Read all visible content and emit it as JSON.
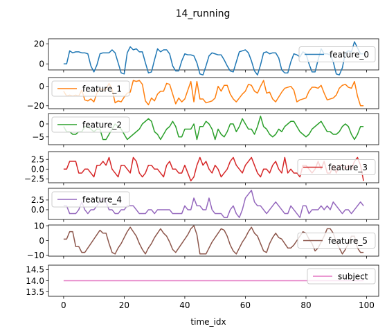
{
  "chart_data": {
    "type": "line",
    "title": "14_running",
    "xlabel": "time_idx",
    "x": [
      0,
      1,
      2,
      3,
      4,
      5,
      6,
      7,
      8,
      9,
      10,
      11,
      12,
      13,
      14,
      15,
      16,
      17,
      18,
      19,
      20,
      21,
      22,
      23,
      24,
      25,
      26,
      27,
      28,
      29,
      30,
      31,
      32,
      33,
      34,
      35,
      36,
      37,
      38,
      39,
      40,
      41,
      42,
      43,
      44,
      45,
      46,
      47,
      48,
      49,
      50,
      51,
      52,
      53,
      54,
      55,
      56,
      57,
      58,
      59,
      60,
      61,
      62,
      63,
      64,
      65,
      66,
      67,
      68,
      69,
      70,
      71,
      72,
      73,
      74,
      75,
      76,
      77,
      78,
      79,
      80,
      81,
      82,
      83,
      84,
      85,
      86,
      87,
      88,
      89,
      90,
      91,
      92,
      93,
      94,
      95,
      96,
      97,
      98,
      99
    ],
    "xlim": [
      -5,
      104
    ],
    "xticks": [
      0,
      20,
      40,
      60,
      80,
      100
    ],
    "panels": [
      {
        "name": "feature_0",
        "color": "#1f77b4",
        "ylim": [
          -6,
          25
        ],
        "yticks": [
          0,
          20
        ],
        "legend_loc": "center-right",
        "values": [
          0,
          0,
          13,
          11,
          12,
          12,
          11,
          11,
          10,
          -2,
          -8,
          -1,
          10,
          11,
          11,
          11,
          14,
          11,
          1,
          -9,
          -10,
          11,
          17,
          14,
          15,
          12,
          12,
          1,
          -9,
          -8,
          4,
          15,
          12,
          14,
          14,
          10,
          -2,
          -7,
          -7,
          3,
          10,
          9,
          9,
          8,
          1,
          -10,
          -11,
          -2,
          8,
          11,
          10,
          9,
          9,
          4,
          -2,
          -7,
          -8,
          2,
          12,
          13,
          14,
          11,
          3,
          -7,
          -11,
          -1,
          11,
          12,
          10,
          11,
          11,
          6,
          -6,
          -9,
          -9,
          2,
          10,
          9,
          7,
          12,
          10,
          0,
          -8,
          -8,
          4,
          15,
          10,
          10,
          9,
          2,
          -10,
          -11,
          -4,
          11,
          13,
          12,
          22,
          16,
          10,
          10
        ]
      },
      {
        "name": "feature_1",
        "color": "#ff7f0e",
        "ylim": [
          -23,
          9
        ],
        "yticks": [
          0,
          -20
        ],
        "legend_loc": "upper-left",
        "values": [
          -5,
          -10,
          -9,
          -10,
          -9,
          -10,
          -4,
          -14,
          -15,
          -13,
          -16,
          -7,
          -2,
          -4,
          -3,
          3,
          -3,
          -17,
          -15,
          -16,
          -11,
          -7,
          -6,
          6,
          5,
          6,
          2,
          -15,
          -19,
          -12,
          -15,
          -8,
          -5,
          -5,
          3,
          2,
          -8,
          -18,
          -12,
          -16,
          -13,
          -4,
          5,
          -16,
          5,
          -13,
          -13,
          -17,
          -16,
          -15,
          -12,
          0,
          -5,
          1,
          1,
          -8,
          -13,
          -16,
          -12,
          -8,
          -5,
          2,
          1,
          -5,
          -7,
          0,
          6,
          -7,
          -6,
          -13,
          -16,
          -11,
          -6,
          -2,
          -1,
          0,
          -4,
          -16,
          -14,
          -13,
          -12,
          -5,
          -1,
          -1,
          -2,
          1,
          -7,
          -14,
          -13,
          -12,
          -9,
          -2,
          1,
          2,
          -1,
          -2,
          5,
          -10,
          -20,
          -20
        ]
      },
      {
        "name": "feature_2",
        "color": "#2ca02c",
        "ylim": [
          -8,
          4
        ],
        "yticks": [
          0,
          -5
        ],
        "legend_loc": "upper-left",
        "values": [
          -1,
          -3,
          -3,
          -4,
          -4,
          -3,
          -3,
          -1,
          -1,
          -2,
          -3,
          -2,
          -2,
          -6,
          -6,
          -4,
          -2,
          0,
          -1,
          -2,
          -4,
          -6,
          -5,
          -4,
          -3,
          -2,
          0,
          1,
          2,
          1,
          -3,
          -4,
          -6,
          -4,
          -2,
          -1,
          1,
          -1,
          -5,
          -5,
          -2,
          -2,
          -2,
          0,
          -6,
          -1,
          -1,
          1,
          0,
          -2,
          -6,
          -2,
          -4,
          -5,
          -3,
          0,
          0,
          -3,
          -1,
          2,
          0,
          -2,
          -2,
          -4,
          -1,
          3,
          -1,
          -2,
          -4,
          -5,
          -4,
          -2,
          -3,
          -1,
          0,
          1,
          1,
          -1,
          -3,
          -4,
          -5,
          -4,
          -2,
          -1,
          0,
          1,
          -1,
          -3,
          -3,
          -4,
          -4,
          -3,
          -1,
          0,
          -1,
          -4,
          -6,
          -4,
          -1,
          -1
        ]
      },
      {
        "name": "feature_3",
        "color": "#d62728",
        "ylim": [
          -3.5,
          4.5
        ],
        "yticks": [
          2.5,
          0.0,
          -2.5
        ],
        "legend_loc": "center-right",
        "values": [
          0,
          0,
          2,
          2,
          2,
          -1,
          -1,
          0,
          0,
          -1,
          -2,
          1,
          1,
          2,
          1,
          3,
          0,
          -1,
          -2,
          1,
          1,
          0,
          -1,
          3,
          2,
          -1,
          -2,
          -1,
          1,
          1,
          0,
          0,
          -1,
          -2,
          1,
          2,
          0,
          0,
          -1,
          -1,
          1,
          -1,
          -3,
          -2,
          1,
          3,
          1,
          2,
          0,
          -1,
          1,
          0,
          -2,
          -1,
          0,
          2,
          3,
          1,
          0,
          -1,
          1,
          2,
          3,
          1,
          -1,
          -2,
          0,
          0,
          -1,
          1,
          2,
          0,
          -1,
          3,
          -1,
          0,
          -1,
          -1,
          -2,
          1,
          1,
          0,
          -1,
          0,
          2,
          0,
          2,
          -1,
          -1,
          1,
          -1,
          1,
          1,
          0,
          1,
          0,
          2,
          3,
          1,
          -3
        ]
      },
      {
        "name": "feature_4",
        "color": "#9467bd",
        "ylim": [
          -2.5,
          5.5
        ],
        "yticks": [
          2.5,
          0.0
        ],
        "legend_loc": "upper-left",
        "values": [
          1,
          1,
          -1,
          -1,
          -1,
          0,
          2,
          0,
          -1,
          0,
          0,
          1,
          2,
          3,
          2,
          0,
          0,
          -1,
          -1,
          0,
          0,
          1,
          1,
          1,
          0,
          -1,
          -1,
          -1,
          0,
          0,
          -1,
          0,
          0,
          0,
          0,
          0,
          -1,
          -1,
          -1,
          -1,
          1,
          0,
          0,
          3,
          1,
          1,
          0,
          0,
          3,
          0,
          -1,
          -1,
          -1,
          -2,
          -2,
          0,
          1,
          -1,
          -2,
          0,
          3,
          4,
          5,
          2,
          1,
          1,
          0,
          -1,
          0,
          1,
          2,
          1,
          0,
          -1,
          -1,
          1,
          0,
          -1,
          -2,
          1,
          1,
          -1,
          0,
          0,
          0,
          1,
          0,
          1,
          0,
          2,
          1,
          0,
          -1,
          0,
          0,
          -1,
          0,
          1,
          2,
          1
        ]
      },
      {
        "name": "feature_5",
        "color": "#8c564b",
        "ylim": [
          -10.5,
          10.5
        ],
        "yticks": [
          10,
          0,
          -10
        ],
        "legend_loc": "center-right",
        "values": [
          1,
          1,
          6,
          6,
          -4,
          -4,
          -8,
          -8,
          -5,
          -2,
          1,
          4,
          7,
          5,
          5,
          -2,
          -8,
          -9,
          -5,
          -2,
          2,
          6,
          9,
          6,
          3,
          -2,
          -6,
          -9,
          -5,
          -2,
          2,
          5,
          8,
          5,
          3,
          -1,
          -6,
          -8,
          -5,
          -2,
          1,
          4,
          8,
          10,
          4,
          -9,
          -9,
          -9,
          -5,
          -1,
          2,
          5,
          8,
          7,
          3,
          -3,
          -7,
          -9,
          -5,
          -1,
          2,
          6,
          9,
          5,
          3,
          -2,
          -7,
          -8,
          -2,
          2,
          5,
          2,
          1,
          -2,
          -5,
          -5,
          -3,
          0,
          3,
          6,
          5,
          1,
          -2,
          -7,
          -5,
          -1,
          3,
          8,
          8,
          5,
          -1,
          -5,
          -9,
          -6,
          -2,
          3,
          3,
          -5,
          -8,
          -8
        ]
      },
      {
        "name": "subject",
        "color": "#e377c2",
        "ylim": [
          13.3,
          14.7
        ],
        "yticks": [
          14.5,
          14.0,
          13.5
        ],
        "legend_loc": "upper-right",
        "values": [
          14,
          14,
          14,
          14,
          14,
          14,
          14,
          14,
          14,
          14,
          14,
          14,
          14,
          14,
          14,
          14,
          14,
          14,
          14,
          14,
          14,
          14,
          14,
          14,
          14,
          14,
          14,
          14,
          14,
          14,
          14,
          14,
          14,
          14,
          14,
          14,
          14,
          14,
          14,
          14,
          14,
          14,
          14,
          14,
          14,
          14,
          14,
          14,
          14,
          14,
          14,
          14,
          14,
          14,
          14,
          14,
          14,
          14,
          14,
          14,
          14,
          14,
          14,
          14,
          14,
          14,
          14,
          14,
          14,
          14,
          14,
          14,
          14,
          14,
          14,
          14,
          14,
          14,
          14,
          14,
          14,
          14,
          14,
          14,
          14,
          14,
          14,
          14,
          14,
          14,
          14,
          14,
          14,
          14,
          14,
          14,
          14,
          14,
          14,
          14
        ]
      }
    ]
  }
}
